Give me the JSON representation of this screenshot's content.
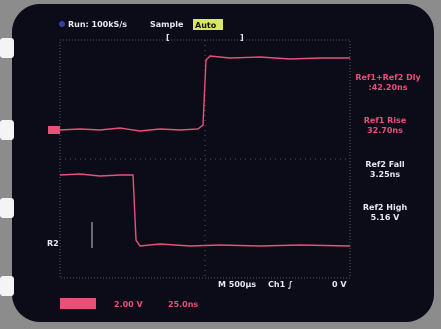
{
  "header": {
    "run": "Run: 100kS/s",
    "mode": "Sample",
    "trigger": "Auto"
  },
  "measurements": [
    {
      "label": "Ref1+Ref2 Dly",
      "value": ":42.20ns"
    },
    {
      "label": "Ref1 Rise",
      "value": "32.70ns"
    },
    {
      "label": "Ref2 Fall",
      "value": "3.25ns"
    },
    {
      "label": "Ref2 High",
      "value": "5.16 V"
    }
  ],
  "markers": {
    "ref2": "R2"
  },
  "footer": {
    "timebase": "M 500µs",
    "channel": "Ch1 ∫",
    "level": "0 V",
    "ref_scale": "2.00 V",
    "ref_time": "25.0ns"
  }
}
